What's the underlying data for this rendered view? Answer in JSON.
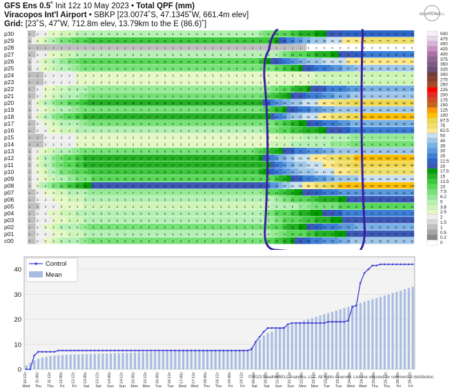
{
  "header": {
    "model": "GFS Ens 0.5˚",
    "init": "Init 12z 10 May 2023",
    "bullet": "•",
    "product": "Total QPF (mm)",
    "station": "Viracopos Int'l Airport",
    "station_info": "• SBKP [23.0074˚S, 47.1345˚W, 661.4m elev]",
    "grid_label": "Grid:",
    "grid_info": "[23˚S, 47˚W, 712.8m elev, 13.79km to the E (86.6)˚]"
  },
  "logo": {
    "text": "WEATHERBELL",
    "icon": "weatherbell-logo-icon"
  },
  "footer": "© 2023 WeatherBELL Analytics, LLC. All rights reserved. License required for commercial distribution.",
  "colors": {
    "annotation": "#3a1f9e",
    "control": "#3a3ad6",
    "mean": "#a9bde0"
  },
  "chart_data": [
    {
      "type": "heatmap",
      "rows": [
        "p30",
        "p29",
        "p28",
        "p27",
        "p26",
        "p25",
        "p24",
        "p23",
        "p22",
        "p21",
        "p20",
        "p19",
        "p18",
        "p17",
        "p16",
        "p15",
        "p14",
        "p13",
        "p12",
        "p11",
        "p10",
        "p09",
        "p08",
        "p07",
        "p06",
        "p05",
        "p04",
        "p03",
        "p02",
        "p01",
        "c00"
      ],
      "final_values": [
        24,
        77,
        0,
        26,
        67,
        45,
        4,
        4,
        36,
        41,
        92,
        49,
        101,
        39,
        25,
        7,
        8,
        46,
        100,
        98,
        77,
        53,
        120,
        34,
        22,
        11,
        27,
        22,
        37,
        22,
        42
      ],
      "note_values": "per-row cumulative values shown for key steps; cells sequence ramps from ~1 to final value",
      "colorbar": {
        "levels": [
          "500",
          "475",
          "450",
          "425",
          "400",
          "375",
          "350",
          "325",
          "300",
          "275",
          "250",
          "225",
          "200",
          "175",
          "150",
          "125",
          "100",
          "87.5",
          "75",
          "62.5",
          "50",
          "40",
          "35",
          "30",
          "25",
          "22.5",
          "20",
          "17.5",
          "15",
          "12.5",
          "10",
          "7.5",
          "6.2",
          "5",
          "3.8",
          "2.5",
          "2",
          "1.5",
          "1",
          "0.5",
          "0.2",
          "0"
        ],
        "colors": [
          "#f6eff6",
          "#ead4ea",
          "#d9b0d8",
          "#c690c3",
          "#ad6fab",
          "#946397",
          "#7d5a85",
          "#6c4f73",
          "#6e3f3f",
          "#8a3d28",
          "#a94a24",
          "#ff0000",
          "#e32a20",
          "#d04a1e",
          "#c6651e",
          "#ff9a00",
          "#ffc000",
          "#f0d84e",
          "#efe06c",
          "#ffe98a",
          "#c8e0f0",
          "#9fc7ea",
          "#7ab2e8",
          "#5999e0",
          "#3b7fd8",
          "#2b64c8",
          "#3b59b7",
          "#00a000",
          "#23b223",
          "#3cc83c",
          "#57d857",
          "#77e277",
          "#96ea96",
          "#b5f0b5",
          "#cef5b5",
          "#e4f7c4",
          "#eeeeee",
          "#d7d7d7",
          "#bfbfbf",
          "#a5a5a5",
          "#888888",
          "#ffffff"
        ]
      },
      "annotation": "hand-drawn purple oval around 20-00z to 24-12z period"
    },
    {
      "type": "line",
      "title": "",
      "ylim": [
        0,
        45
      ],
      "y_ticks": [
        0,
        10,
        20,
        30,
        40
      ],
      "x_tick_labels": [
        "10-12z",
        "11-00z",
        "11-12z",
        "12-00z",
        "12-12z",
        "13-00z",
        "13-12z",
        "14-00z",
        "14-12z",
        "15-00z",
        "15-12z",
        "16-00z",
        "16-12z",
        "17-00z",
        "17-12z",
        "18-00z",
        "18-12z",
        "19-00z",
        "19-12z",
        "20-00z",
        "20-12z",
        "21-00z",
        "21-12z",
        "22-00z",
        "22-12z",
        "23-00z",
        "23-12z",
        "24-00z",
        "24-12z",
        "25-00z",
        "25-12z",
        "26-00z",
        "26-12z"
      ],
      "day_labels": [
        "Wed",
        "Thu",
        "Thu",
        "Fri",
        "Fri",
        "Sat",
        "Sat",
        "Sun",
        "Sun",
        "Mon",
        "Mon",
        "Tue",
        "Tue",
        "Wed",
        "Wed",
        "Thu",
        "Thu",
        "Fri",
        "Fri",
        "Sat",
        "Sat",
        "Sun",
        "Sun",
        "Mon",
        "Mon",
        "Tue",
        "Tue",
        "Wed",
        "Wed",
        "Thu",
        "Thu",
        "Fri",
        "Fri"
      ],
      "legend": [
        "Control",
        "Mean"
      ],
      "series": [
        {
          "name": "Control",
          "values": [
            0,
            0,
            5.5,
            7,
            7,
            7,
            7,
            7,
            7.5,
            7.5,
            7.5,
            7.5,
            7.5,
            7.5,
            7.5,
            7.5,
            7.5,
            7.5,
            7.5,
            7.5,
            7.5,
            7.5,
            7.5,
            7.5,
            7.5,
            7.5,
            7.5,
            7.5,
            7.5,
            7.5,
            7.5,
            7.5,
            7.5,
            7.5,
            7.5,
            7.5,
            7.5,
            7.5,
            7.5,
            7.5,
            7.5,
            7.5,
            7.5,
            7.5,
            7.5,
            7.5,
            7.5,
            7.5,
            7.5,
            7.5,
            7.5,
            7.5,
            7.5,
            7.5,
            7.5,
            7.5,
            8,
            11,
            13,
            15,
            16.5,
            16.5,
            16.5,
            16.5,
            16.5,
            18,
            18.5,
            18.5,
            18.5,
            18.5,
            18.5,
            18.5,
            18.5,
            18.5,
            18.5,
            19,
            19,
            19,
            19,
            19,
            19.5,
            25,
            25.5,
            34.5,
            38.5,
            40,
            41.5,
            41.5,
            42,
            42,
            42,
            42,
            42,
            42,
            42,
            42,
            42
          ]
        },
        {
          "name": "Mean",
          "values": [
            1.6,
            2.6,
            3.6,
            4.2,
            4.6,
            5,
            5.3,
            5.5,
            5.6,
            5.7,
            5.8,
            5.9,
            5.95,
            6,
            6.05,
            6.1,
            6.15,
            6.2,
            6.25,
            6.3,
            6.35,
            6.4,
            6.45,
            6.5,
            6.55,
            6.6,
            6.65,
            6.7,
            6.75,
            6.8,
            6.85,
            6.9,
            6.95,
            7,
            7,
            7.05,
            7.1,
            7.1,
            7.15,
            7.2,
            7.2,
            7.25,
            7.3,
            7.3,
            7.35,
            7.4,
            7.4,
            7.45,
            7.5,
            7.5,
            7.55,
            7.6,
            7.6,
            7.65,
            7.7,
            7.7,
            9,
            11,
            12,
            13.5,
            14.5,
            15,
            16,
            16.5,
            17,
            17.5,
            18,
            18.5,
            19,
            19.5,
            20,
            20.5,
            21,
            21.5,
            22,
            22.5,
            23,
            23.5,
            24,
            24.5,
            25,
            25.5,
            26,
            26.5,
            27,
            27.5,
            28,
            28.5,
            29,
            29.5,
            30,
            30.5,
            31,
            31.5,
            32,
            32.5,
            33
          ]
        }
      ]
    }
  ]
}
